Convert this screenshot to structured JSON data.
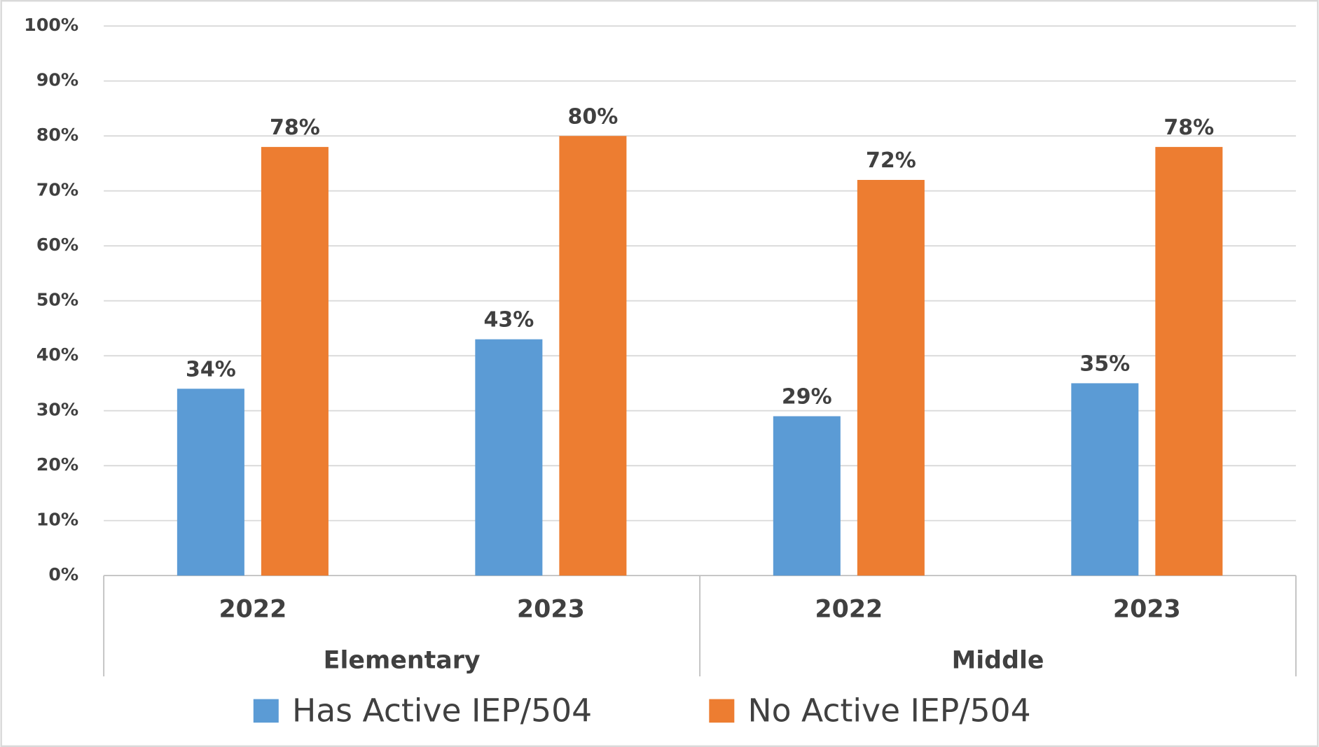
{
  "chart_data": {
    "type": "bar",
    "groups": [
      {
        "name": "Elementary",
        "categories": [
          "2022",
          "2023"
        ]
      },
      {
        "name": "Middle",
        "categories": [
          "2022",
          "2023"
        ]
      }
    ],
    "series": [
      {
        "name": "Has Active IEP/504",
        "color": "#5b9bd5",
        "values": [
          34,
          43,
          29,
          35
        ],
        "value_labels": [
          "34%",
          "43%",
          "29%",
          "35%"
        ]
      },
      {
        "name": "No Active IEP/504",
        "color": "#ed7d31",
        "values": [
          78,
          80,
          72,
          78
        ],
        "value_labels": [
          "78%",
          "80%",
          "72%",
          "78%"
        ]
      }
    ],
    "ylim": [
      0,
      100
    ],
    "yticks": [
      {
        "value": 0,
        "label": "0%"
      },
      {
        "value": 10,
        "label": "10%"
      },
      {
        "value": 20,
        "label": "20%"
      },
      {
        "value": 30,
        "label": "30%"
      },
      {
        "value": 40,
        "label": "40%"
      },
      {
        "value": 50,
        "label": "50%"
      },
      {
        "value": 60,
        "label": "60%"
      },
      {
        "value": 70,
        "label": "70%"
      },
      {
        "value": 80,
        "label": "80%"
      },
      {
        "value": 90,
        "label": "90%"
      },
      {
        "value": 100,
        "label": "100%"
      }
    ],
    "grid": true,
    "legend": "bottom"
  }
}
